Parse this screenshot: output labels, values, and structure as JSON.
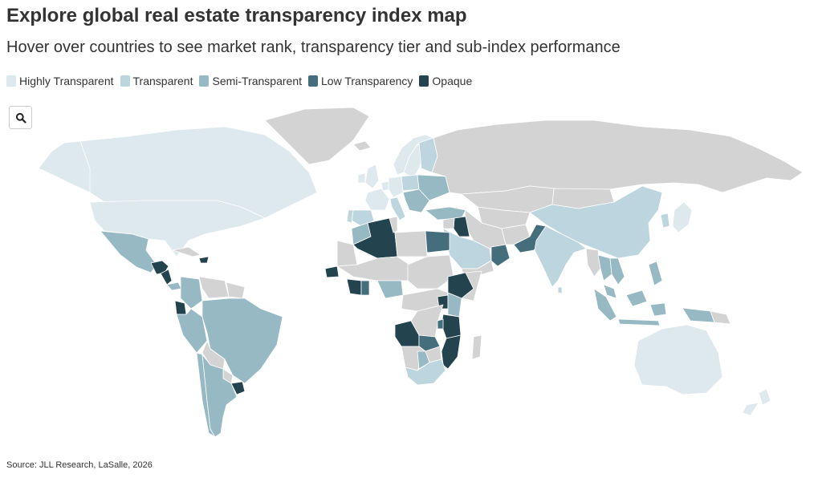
{
  "header": {
    "title": "Explore global real estate transparency index map",
    "subtitle": "Hover over countries to see market rank, transparency tier and sub-index performance"
  },
  "legend": [
    {
      "label": "Highly Transparent",
      "color": "#dde9ec"
    },
    {
      "label": "Transparent",
      "color": "#bcd5de"
    },
    {
      "label": "Semi-Transparent",
      "color": "#96b9c4"
    },
    {
      "label": "Low Transparency",
      "color": "#446e7c"
    },
    {
      "label": "Opaque",
      "color": "#23434e"
    }
  ],
  "colors": {
    "no_data": "#d3d3d3",
    "border": "#ffffff"
  },
  "search": {
    "icon": "search-icon"
  },
  "source": "Source: JLL Research, LaSalle, 2026"
}
